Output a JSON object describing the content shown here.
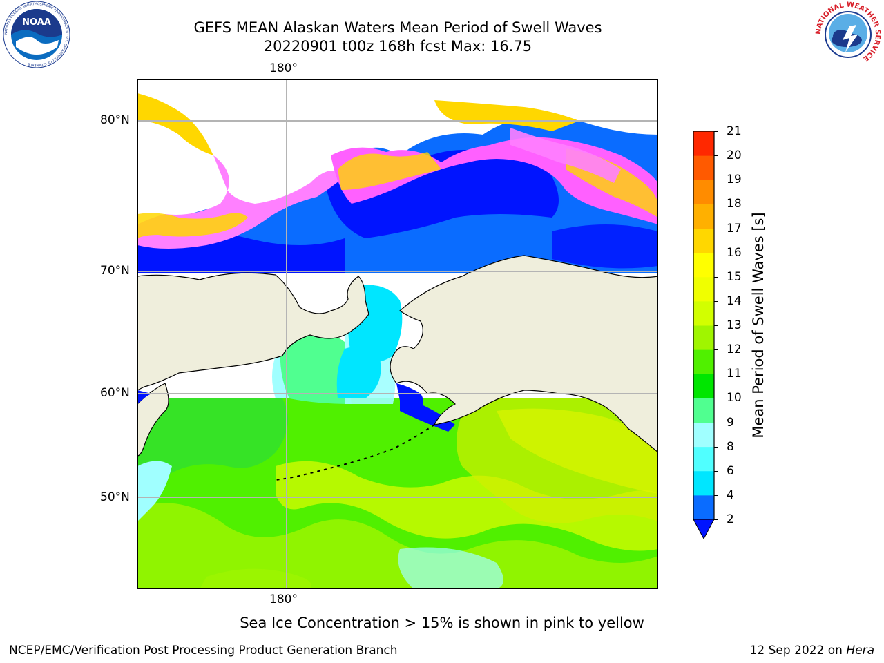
{
  "title": {
    "line1": "GEFS MEAN Alaskan Waters Mean Period of Swell Waves",
    "line2": "20220901 t00z 168h fcst   Max: 16.75"
  },
  "map": {
    "lon_label_top": "180°",
    "lon_label_bottom": "180°",
    "lat_labels": [
      "80°N",
      "70°N",
      "60°N",
      "50°N"
    ],
    "land_color": "#efeedc",
    "gridline_color": "#b4b4b4"
  },
  "colorbar": {
    "title": "Mean Period of Swell Waves [s]",
    "ticks": [
      "2",
      "4",
      "6",
      "8",
      "9",
      "10",
      "11",
      "12",
      "13",
      "14",
      "15",
      "16",
      "17",
      "18",
      "19",
      "20",
      "21"
    ],
    "colors": [
      "#0a6cff",
      "#00e6ff",
      "#50ffff",
      "#a0ffff",
      "#50ff90",
      "#00e600",
      "#50f000",
      "#a0f500",
      "#d2ff00",
      "#f0ff00",
      "#ffff00",
      "#ffd700",
      "#ffb000",
      "#ff8c00",
      "#ff5a00",
      "#ff2800",
      "#ff0000"
    ],
    "under_color": "#0014ff"
  },
  "note": "Sea Ice Concentration > 15% is shown in pink to yellow",
  "footer": {
    "left": "NCEP/EMC/Verification Post Processing Product Generation Branch",
    "right_prefix": "12 Sep 2022 on ",
    "right_host": "Hera"
  },
  "logos": {
    "noaa_text": "NOAA",
    "noaa_ring": "NATIONAL OCEANIC AND ATMOSPHERIC ADMINISTRATION · U.S. DEPARTMENT OF COMMERCE",
    "nws_ring": "NATIONAL WEATHER SERVICE"
  }
}
